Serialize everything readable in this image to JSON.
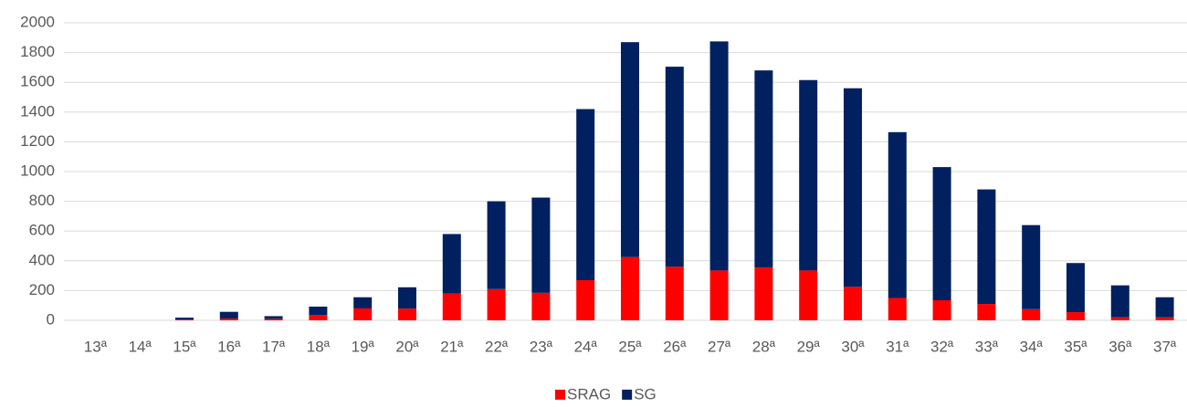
{
  "chart_data": {
    "type": "stacked_bar",
    "categories": [
      "13ª",
      "14ª",
      "15ª",
      "16ª",
      "17ª",
      "18ª",
      "19ª",
      "20ª",
      "21ª",
      "22ª",
      "23ª",
      "24ª",
      "25ª",
      "26ª",
      "27ª",
      "28ª",
      "29ª",
      "30ª",
      "31ª",
      "32ª",
      "33ª",
      "34ª",
      "35ª",
      "36ª",
      "37ª"
    ],
    "series": [
      {
        "name": "SRAG",
        "color": "#ff0000",
        "values": [
          0,
          0,
          5,
          12,
          10,
          35,
          80,
          78,
          180,
          210,
          185,
          270,
          425,
          360,
          335,
          355,
          335,
          225,
          150,
          135,
          110,
          75,
          55,
          20,
          20
        ]
      },
      {
        "name": "SG",
        "color": "#002060",
        "values": [
          0,
          0,
          13,
          45,
          18,
          57,
          75,
          144,
          400,
          590,
          640,
          1150,
          1445,
          1345,
          1540,
          1325,
          1280,
          1335,
          1115,
          895,
          770,
          565,
          330,
          215,
          135
        ]
      }
    ],
    "ylim": [
      0,
      2000
    ],
    "yticks": [
      0,
      200,
      400,
      600,
      800,
      1000,
      1200,
      1400,
      1600,
      1800,
      2000
    ],
    "grid": true,
    "legend": "bottom"
  }
}
